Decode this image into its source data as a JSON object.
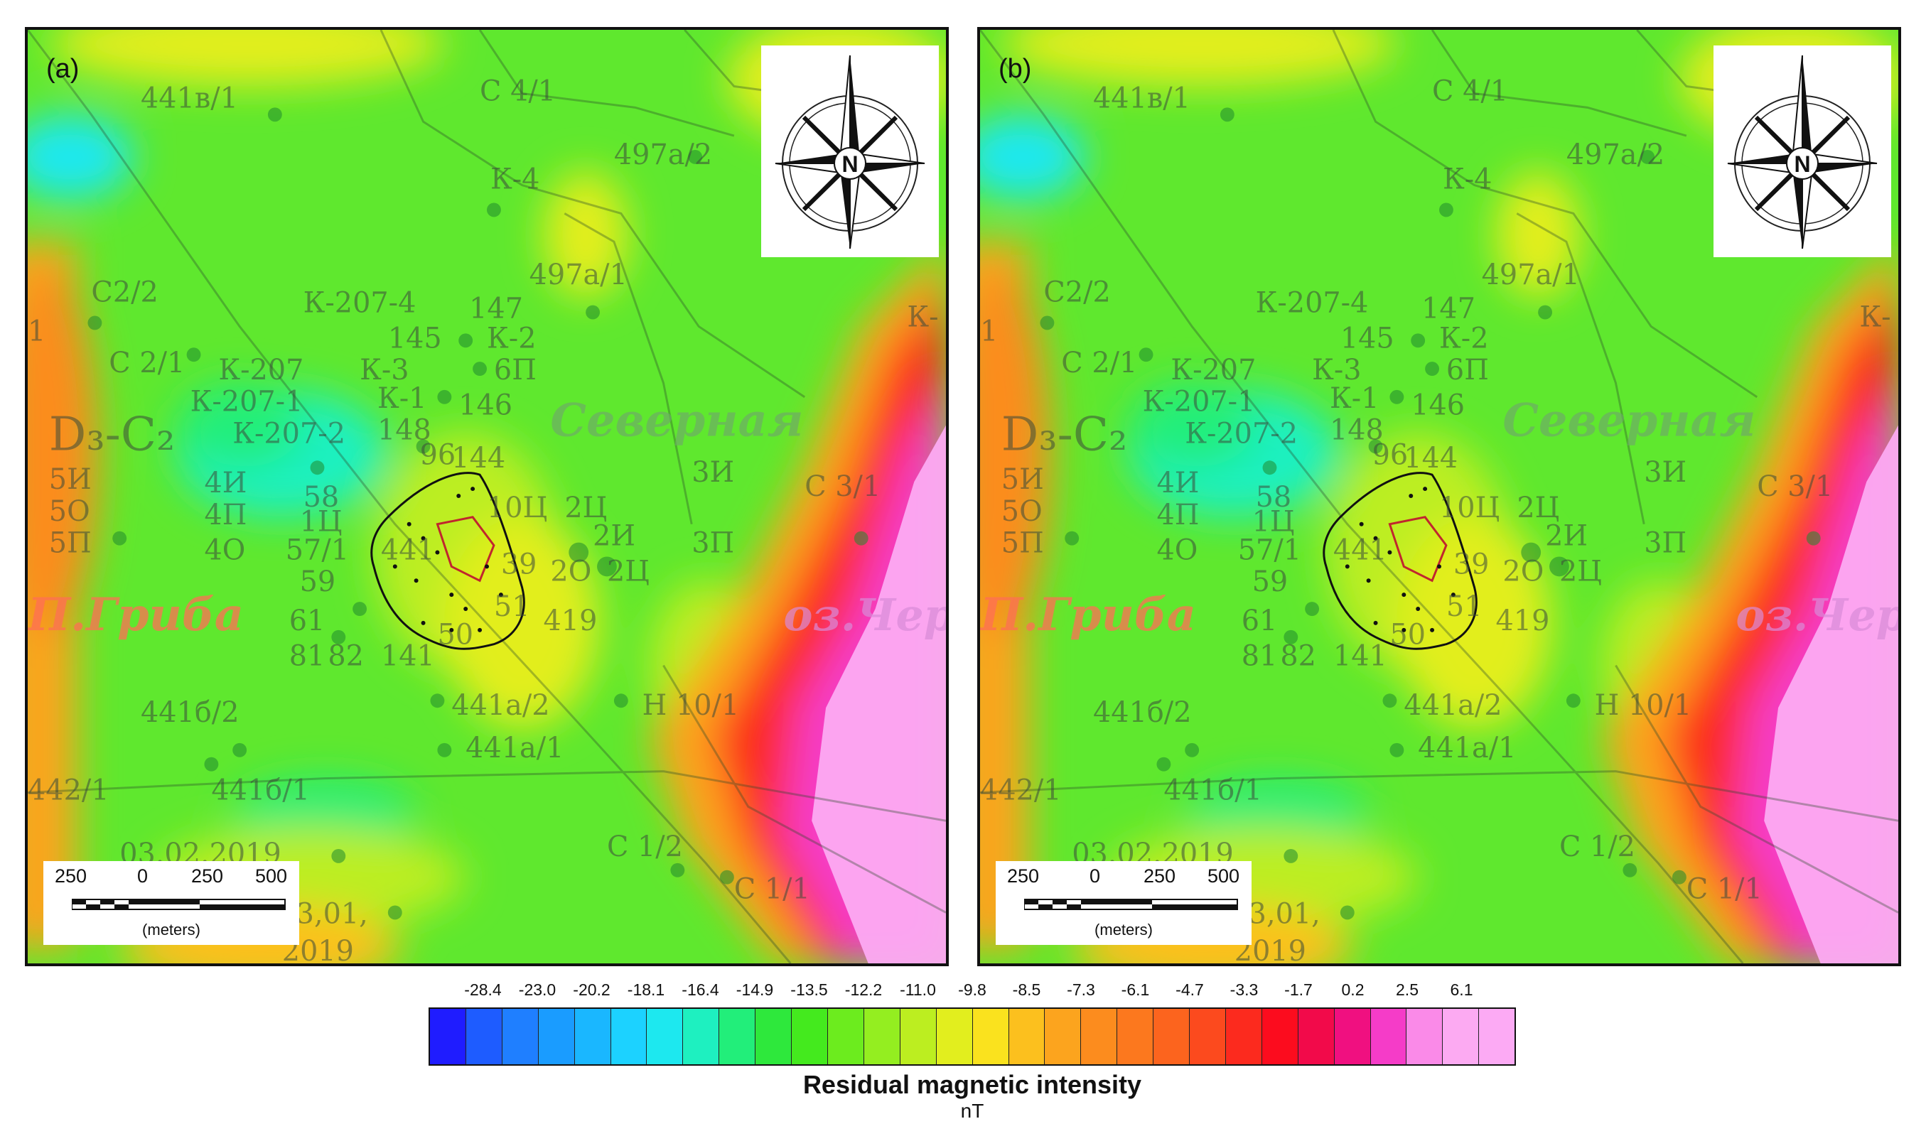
{
  "panels": [
    {
      "id": "a",
      "label": "(a)"
    },
    {
      "id": "b",
      "label": "(b)"
    }
  ],
  "compass": {
    "label": "N"
  },
  "scale_bar": {
    "ticks": [
      "250",
      "0",
      "250",
      "500"
    ],
    "unit": "(meters)"
  },
  "map_labels": {
    "wells": [
      "441в/1",
      "С 4/1",
      "497а/2",
      "К-4",
      "497а/1",
      "С2/2",
      "К-207-4",
      "147",
      "145",
      "К-2",
      "С 2/1",
      "К-207",
      "К-3",
      "6П",
      "К-1",
      "К-207-1",
      "146",
      "148",
      "К-207-2",
      "96",
      "144",
      "5И",
      "5О",
      "5П",
      "4И",
      "4П",
      "4О",
      "58",
      "1Ц",
      "57/1",
      "441",
      "59",
      "61",
      "81",
      "82",
      "3И",
      "10Ц",
      "2Ц",
      "2И",
      "39",
      "2О",
      "2Ц",
      "419",
      "50",
      "51",
      "141",
      "3П",
      "С 3/1",
      "441а/2",
      "Н 10/1",
      "441б/2",
      "441а/1",
      "442/1",
      "441б/1",
      "03.02.2019",
      "С 1/2",
      "С 1/1",
      "3,01,",
      "2019",
      "К-",
      "1"
    ],
    "stratigraphy": "D₃-C₂",
    "regions": [
      "Северная",
      "П.Гриба",
      "оз.Черн"
    ]
  },
  "legend": {
    "title": "Residual magnetic intensity",
    "unit": "nT",
    "tick_labels": [
      "-28.4",
      "-23.0",
      "-20.2",
      "-18.1",
      "-16.4",
      "-14.9",
      "-13.5",
      "-12.2",
      "-11.0",
      "-9.8",
      "-8.5",
      "-7.3",
      "-6.1",
      "-4.7",
      "-3.3",
      "-1.7",
      "0.2",
      "2.5",
      "6.1"
    ],
    "colors": [
      "#1f1cff",
      "#1e5cff",
      "#1f7fff",
      "#1a9cff",
      "#1ab7ff",
      "#1cd2ff",
      "#1de8ef",
      "#1ef0c0",
      "#22ee7a",
      "#2ee83c",
      "#44ea1e",
      "#6cec1e",
      "#94ee20",
      "#bcee20",
      "#e2ee1e",
      "#fae21e",
      "#fcc01e",
      "#fca41e",
      "#fc8c1e",
      "#fc781e",
      "#fc641e",
      "#fc4a1e",
      "#fc2a1e",
      "#fc0c1e",
      "#f20a4a",
      "#f01080",
      "#f53cc8",
      "#fa8ae8",
      "#fcaaf2",
      "#fcaaf4"
    ]
  }
}
